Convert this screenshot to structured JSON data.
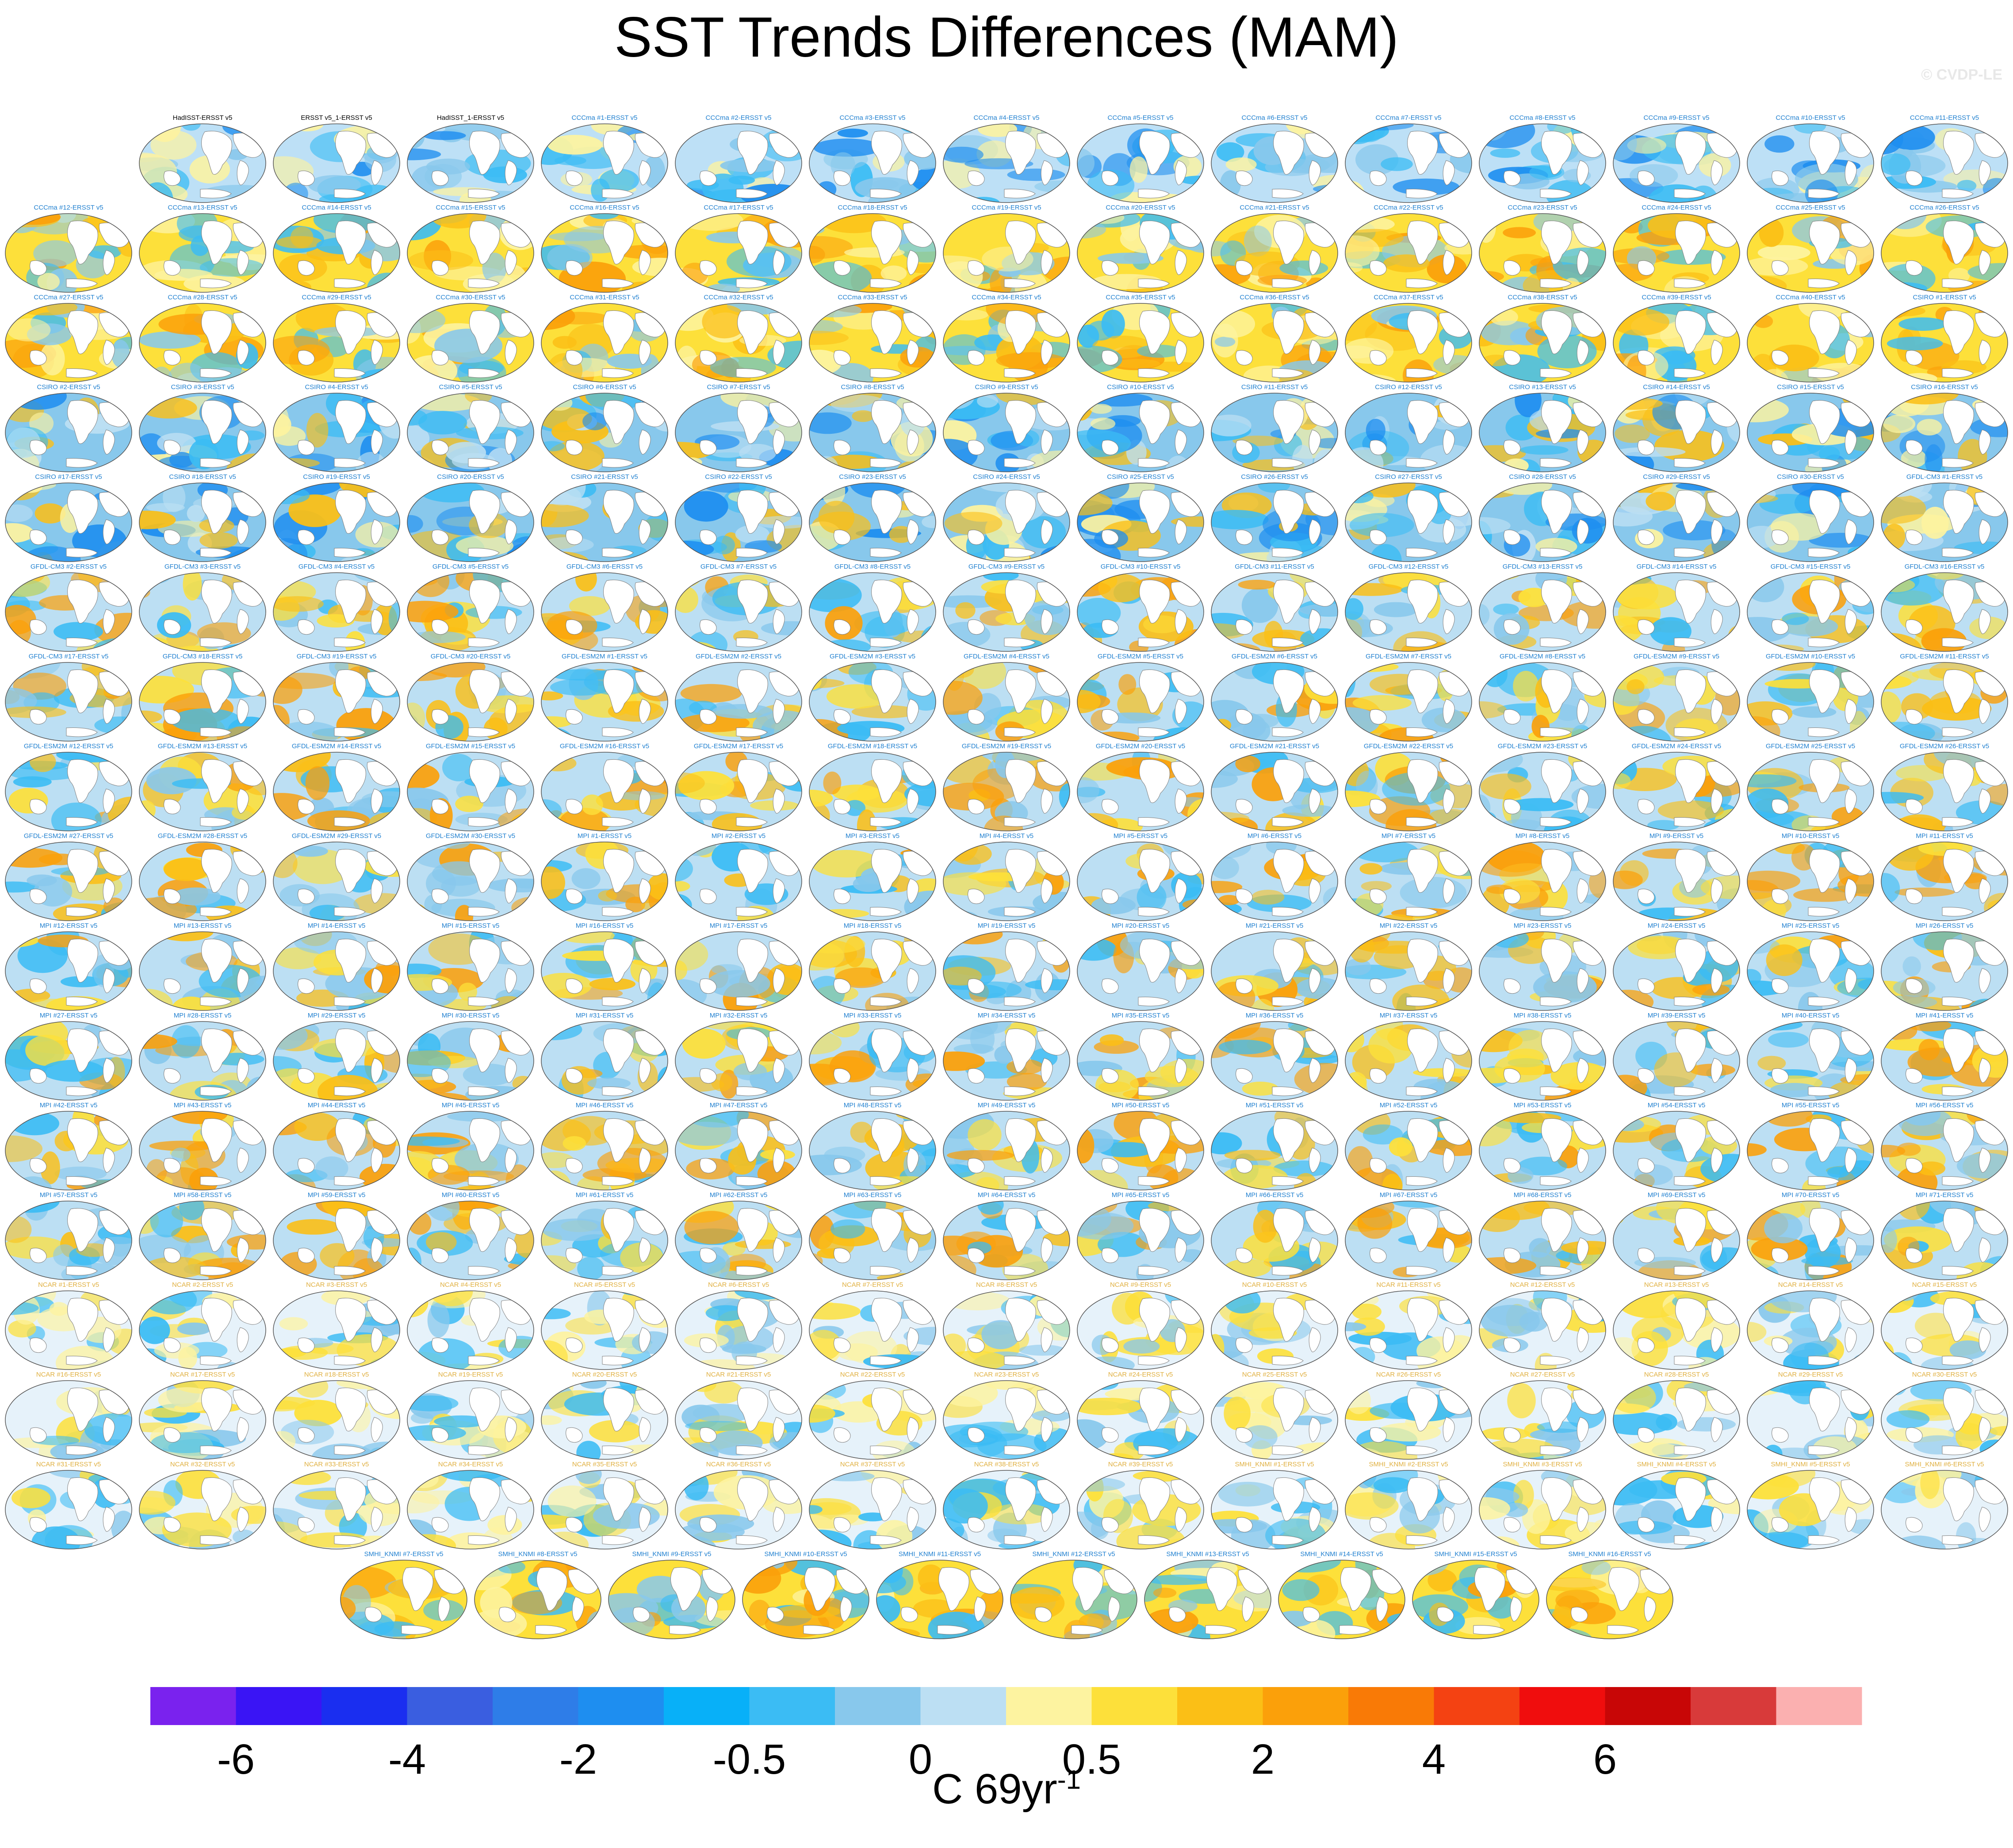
{
  "title": "SST Trends Differences (MAM)",
  "credit": "© CVDP-LE",
  "units": {
    "base": "C 69yr",
    "exponent": "-1"
  },
  "chart_data": {
    "type": "heatmap",
    "title": "SST Trends Differences (MAM)",
    "colorbar": {
      "tick_labels": [
        "-6",
        "-4",
        "-2",
        "-0.5",
        "0",
        "0.5",
        "2",
        "4",
        "6"
      ],
      "colors": [
        "#7a22ee",
        "#3a14f5",
        "#1a2ef0",
        "#3a5ee0",
        "#2e7de8",
        "#1e8ef0",
        "#08b0f8",
        "#3bbcf4",
        "#88c8ec",
        "#bcdff3",
        "#fdf3a0",
        "#fde03a",
        "#fbbf16",
        "#fba00a",
        "#f97a06",
        "#f44212",
        "#f00d0d",
        "#c80606",
        "#d83a3a",
        "#fbb0b0"
      ],
      "label": "C 69yr-1"
    },
    "rows": [
      [
        "",
        "HadISST-ERSST v5",
        "ERSST v5_1-ERSST v5",
        "HadISST_1-ERSST v5",
        "CCCma #1-ERSST v5",
        "CCCma #2-ERSST v5",
        "CCCma #3-ERSST v5",
        "CCCma #4-ERSST v5",
        "CCCma #5-ERSST v5",
        "CCCma #6-ERSST v5",
        "CCCma #7-ERSST v5",
        "CCCma #8-ERSST v5",
        "CCCma #9-ERSST v5",
        "CCCma #10-ERSST v5",
        "CCCma #11-ERSST v5"
      ],
      [
        "CCCma #12-ERSST v5",
        "CCCma #13-ERSST v5",
        "CCCma #14-ERSST v5",
        "CCCma #15-ERSST v5",
        "CCCma #16-ERSST v5",
        "CCCma #17-ERSST v5",
        "CCCma #18-ERSST v5",
        "CCCma #19-ERSST v5",
        "CCCma #20-ERSST v5",
        "CCCma #21-ERSST v5",
        "CCCma #22-ERSST v5",
        "CCCma #23-ERSST v5",
        "CCCma #24-ERSST v5",
        "CCCma #25-ERSST v5",
        "CCCma #26-ERSST v5"
      ],
      [
        "CCCma #27-ERSST v5",
        "CCCma #28-ERSST v5",
        "CCCma #29-ERSST v5",
        "CCCma #30-ERSST v5",
        "CCCma #31-ERSST v5",
        "CCCma #32-ERSST v5",
        "CCCma #33-ERSST v5",
        "CCCma #34-ERSST v5",
        "CCCma #35-ERSST v5",
        "CCCma #36-ERSST v5",
        "CCCma #37-ERSST v5",
        "CCCma #38-ERSST v5",
        "CCCma #39-ERSST v5",
        "CCCma #40-ERSST v5",
        "CSIRO #1-ERSST v5"
      ],
      [
        "CSIRO #2-ERSST v5",
        "CSIRO #3-ERSST v5",
        "CSIRO #4-ERSST v5",
        "CSIRO #5-ERSST v5",
        "CSIRO #6-ERSST v5",
        "CSIRO #7-ERSST v5",
        "CSIRO #8-ERSST v5",
        "CSIRO #9-ERSST v5",
        "CSIRO #10-ERSST v5",
        "CSIRO #11-ERSST v5",
        "CSIRO #12-ERSST v5",
        "CSIRO #13-ERSST v5",
        "CSIRO #14-ERSST v5",
        "CSIRO #15-ERSST v5",
        "CSIRO #16-ERSST v5"
      ],
      [
        "CSIRO #17-ERSST v5",
        "CSIRO #18-ERSST v5",
        "CSIRO #19-ERSST v5",
        "CSIRO #20-ERSST v5",
        "CSIRO #21-ERSST v5",
        "CSIRO #22-ERSST v5",
        "CSIRO #23-ERSST v5",
        "CSIRO #24-ERSST v5",
        "CSIRO #25-ERSST v5",
        "CSIRO #26-ERSST v5",
        "CSIRO #27-ERSST v5",
        "CSIRO #28-ERSST v5",
        "CSIRO #29-ERSST v5",
        "CSIRO #30-ERSST v5",
        "GFDL-CM3 #1-ERSST v5"
      ],
      [
        "GFDL-CM3 #2-ERSST v5",
        "GFDL-CM3 #3-ERSST v5",
        "GFDL-CM3 #4-ERSST v5",
        "GFDL-CM3 #5-ERSST v5",
        "GFDL-CM3 #6-ERSST v5",
        "GFDL-CM3 #7-ERSST v5",
        "GFDL-CM3 #8-ERSST v5",
        "GFDL-CM3 #9-ERSST v5",
        "GFDL-CM3 #10-ERSST v5",
        "GFDL-CM3 #11-ERSST v5",
        "GFDL-CM3 #12-ERSST v5",
        "GFDL-CM3 #13-ERSST v5",
        "GFDL-CM3 #14-ERSST v5",
        "GFDL-CM3 #15-ERSST v5",
        "GFDL-CM3 #16-ERSST v5"
      ],
      [
        "GFDL-CM3 #17-ERSST v5",
        "GFDL-CM3 #18-ERSST v5",
        "GFDL-CM3 #19-ERSST v5",
        "GFDL-CM3 #20-ERSST v5",
        "GFDL-ESM2M #1-ERSST v5",
        "GFDL-ESM2M #2-ERSST v5",
        "GFDL-ESM2M #3-ERSST v5",
        "GFDL-ESM2M #4-ERSST v5",
        "GFDL-ESM2M #5-ERSST v5",
        "GFDL-ESM2M #6-ERSST v5",
        "GFDL-ESM2M #7-ERSST v5",
        "GFDL-ESM2M #8-ERSST v5",
        "GFDL-ESM2M #9-ERSST v5",
        "GFDL-ESM2M #10-ERSST v5",
        "GFDL-ESM2M #11-ERSST v5"
      ],
      [
        "GFDL-ESM2M #12-ERSST v5",
        "GFDL-ESM2M #13-ERSST v5",
        "GFDL-ESM2M #14-ERSST v5",
        "GFDL-ESM2M #15-ERSST v5",
        "GFDL-ESM2M #16-ERSST v5",
        "GFDL-ESM2M #17-ERSST v5",
        "GFDL-ESM2M #18-ERSST v5",
        "GFDL-ESM2M #19-ERSST v5",
        "GFDL-ESM2M #20-ERSST v5",
        "GFDL-ESM2M #21-ERSST v5",
        "GFDL-ESM2M #22-ERSST v5",
        "GFDL-ESM2M #23-ERSST v5",
        "GFDL-ESM2M #24-ERSST v5",
        "GFDL-ESM2M #25-ERSST v5",
        "GFDL-ESM2M #26-ERSST v5"
      ],
      [
        "GFDL-ESM2M #27-ERSST v5",
        "GFDL-ESM2M #28-ERSST v5",
        "GFDL-ESM2M #29-ERSST v5",
        "GFDL-ESM2M #30-ERSST v5",
        "MPI #1-ERSST v5",
        "MPI #2-ERSST v5",
        "MPI #3-ERSST v5",
        "MPI #4-ERSST v5",
        "MPI #5-ERSST v5",
        "MPI #6-ERSST v5",
        "MPI #7-ERSST v5",
        "MPI #8-ERSST v5",
        "MPI #9-ERSST v5",
        "MPI #10-ERSST v5",
        "MPI #11-ERSST v5"
      ],
      [
        "MPI #12-ERSST v5",
        "MPI #13-ERSST v5",
        "MPI #14-ERSST v5",
        "MPI #15-ERSST v5",
        "MPI #16-ERSST v5",
        "MPI #17-ERSST v5",
        "MPI #18-ERSST v5",
        "MPI #19-ERSST v5",
        "MPI #20-ERSST v5",
        "MPI #21-ERSST v5",
        "MPI #22-ERSST v5",
        "MPI #23-ERSST v5",
        "MPI #24-ERSST v5",
        "MPI #25-ERSST v5",
        "MPI #26-ERSST v5"
      ],
      [
        "MPI #27-ERSST v5",
        "MPI #28-ERSST v5",
        "MPI #29-ERSST v5",
        "MPI #30-ERSST v5",
        "MPI #31-ERSST v5",
        "MPI #32-ERSST v5",
        "MPI #33-ERSST v5",
        "MPI #34-ERSST v5",
        "MPI #35-ERSST v5",
        "MPI #36-ERSST v5",
        "MPI #37-ERSST v5",
        "MPI #38-ERSST v5",
        "MPI #39-ERSST v5",
        "MPI #40-ERSST v5",
        "MPI #41-ERSST v5"
      ],
      [
        "MPI #42-ERSST v5",
        "MPI #43-ERSST v5",
        "MPI #44-ERSST v5",
        "MPI #45-ERSST v5",
        "MPI #46-ERSST v5",
        "MPI #47-ERSST v5",
        "MPI #48-ERSST v5",
        "MPI #49-ERSST v5",
        "MPI #50-ERSST v5",
        "MPI #51-ERSST v5",
        "MPI #52-ERSST v5",
        "MPI #53-ERSST v5",
        "MPI #54-ERSST v5",
        "MPI #55-ERSST v5",
        "MPI #56-ERSST v5"
      ],
      [
        "MPI #57-ERSST v5",
        "MPI #58-ERSST v5",
        "MPI #59-ERSST v5",
        "MPI #60-ERSST v5",
        "MPI #61-ERSST v5",
        "MPI #62-ERSST v5",
        "MPI #63-ERSST v5",
        "MPI #64-ERSST v5",
        "MPI #65-ERSST v5",
        "MPI #66-ERSST v5",
        "MPI #67-ERSST v5",
        "MPI #68-ERSST v5",
        "MPI #69-ERSST v5",
        "MPI #70-ERSST v5",
        "MPI #71-ERSST v5"
      ],
      [
        "NCAR #1-ERSST v5",
        "NCAR #2-ERSST v5",
        "NCAR #3-ERSST v5",
        "NCAR #4-ERSST v5",
        "NCAR #5-ERSST v5",
        "NCAR #6-ERSST v5",
        "NCAR #7-ERSST v5",
        "NCAR #8-ERSST v5",
        "NCAR #9-ERSST v5",
        "NCAR #10-ERSST v5",
        "NCAR #11-ERSST v5",
        "NCAR #12-ERSST v5",
        "NCAR #13-ERSST v5",
        "NCAR #14-ERSST v5",
        "NCAR #15-ERSST v5"
      ],
      [
        "NCAR #16-ERSST v5",
        "NCAR #17-ERSST v5",
        "NCAR #18-ERSST v5",
        "NCAR #19-ERSST v5",
        "NCAR #20-ERSST v5",
        "NCAR #21-ERSST v5",
        "NCAR #22-ERSST v5",
        "NCAR #23-ERSST v5",
        "NCAR #24-ERSST v5",
        "NCAR #25-ERSST v5",
        "NCAR #26-ERSST v5",
        "NCAR #27-ERSST v5",
        "NCAR #28-ERSST v5",
        "NCAR #29-ERSST v5",
        "NCAR #30-ERSST v5"
      ],
      [
        "NCAR #31-ERSST v5",
        "NCAR #32-ERSST v5",
        "NCAR #33-ERSST v5",
        "NCAR #34-ERSST v5",
        "NCAR #35-ERSST v5",
        "NCAR #36-ERSST v5",
        "NCAR #37-ERSST v5",
        "NCAR #38-ERSST v5",
        "NCAR #39-ERSST v5",
        "SMHI_KNMI #1-ERSST v5",
        "SMHI_KNMI #2-ERSST v5",
        "SMHI_KNMI #3-ERSST v5",
        "SMHI_KNMI #4-ERSST v5",
        "SMHI_KNMI #5-ERSST v5",
        "SMHI_KNMI #6-ERSST v5"
      ],
      [
        "SMHI_KNMI #7-ERSST v5",
        "SMHI_KNMI #8-ERSST v5",
        "SMHI_KNMI #9-ERSST v5",
        "SMHI_KNMI #10-ERSST v5",
        "SMHI_KNMI #11-ERSST v5",
        "SMHI_KNMI #12-ERSST v5",
        "SMHI_KNMI #13-ERSST v5",
        "SMHI_KNMI #14-ERSST v5",
        "SMHI_KNMI #15-ERSST v5",
        "SMHI_KNMI #16-ERSST v5"
      ]
    ],
    "row_styles": [
      "obs",
      "warm",
      "warm",
      "cool",
      "cool",
      "mixed",
      "mixed",
      "mixed",
      "mixed",
      "mixed",
      "mixed",
      "mixed",
      "mixed",
      "neutral",
      "neutral",
      "neutral",
      "warm"
    ]
  }
}
